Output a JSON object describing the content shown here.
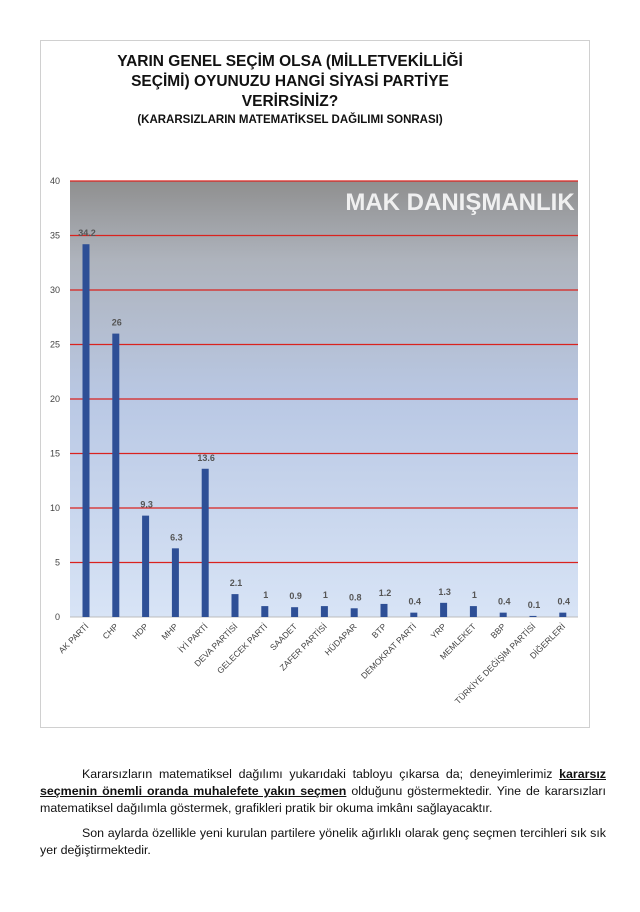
{
  "title_lines": [
    "YARIN GENEL SEÇİM OLSA (MİLLETVEKİLLİĞİ",
    "SEÇİMİ) OYUNUZU HANGİ SİYASİ PARTİYE",
    "VERİRSİNİZ?"
  ],
  "subtitle": "(KARARSIZLARIN MATEMATİKSEL DAĞILIMI SONRASI)",
  "watermark": "MAK DANIŞMANLIK",
  "colors": {
    "bar": "#2e4f96",
    "gridline": "#d9231f",
    "bg_top": "#8f8f8f",
    "bg_bottom": "#d6e3f6"
  },
  "chart_data": {
    "type": "bar",
    "title": "YARIN GENEL SEÇİM OLSA (MİLLETVEKİLLİĞİ SEÇİMİ) OYUNUZU HANGİ SİYASİ PARTİYE VERİRSİNİZ? (KARARSIZLARIN MATEMATİKSEL DAĞILIMI SONRASI)",
    "categories": [
      "AK PARTİ",
      "CHP",
      "HDP",
      "MHP",
      "İYİ PARTİ",
      "DEVA PARTİSİ",
      "GELECEK PARTİ",
      "SAADET",
      "ZAFER PARTİSİ",
      "HÜDAPAR",
      "BTP",
      "DEMOKRAT PARTİ",
      "YRP",
      "MEMLEKET",
      "BBP",
      "TÜRKİYE DEĞİŞİM PARTİSİ",
      "DİĞERLERİ"
    ],
    "values": [
      34.2,
      26,
      9.3,
      6.3,
      13.6,
      2.1,
      1,
      0.9,
      1,
      0.8,
      1.2,
      0.4,
      1.3,
      1,
      0.4,
      0.1,
      0.4
    ],
    "value_labels": [
      "34.2",
      "26",
      "9.3",
      "6.3",
      "13.6",
      "2.1",
      "1",
      "0.9",
      "1",
      "0.8",
      "1.2",
      "0.4",
      "1.3",
      "1",
      "0.4",
      "0.1",
      "0.4"
    ],
    "ylim": [
      0,
      40
    ],
    "yticks": [
      "0",
      "5",
      "10",
      "15",
      "20",
      "25",
      "30",
      "35",
      "40"
    ],
    "xlabel": "",
    "ylabel": "",
    "grid": true
  },
  "paragraph1": {
    "part1": "Kararsızların matematiksel dağılımı yukarıdaki tabloyu çıkarsa da; deneyimlerimiz ",
    "emphasis": "kararsız seçmenin önemli oranda muhalefete yakın seçmen",
    "part2": " olduğunu göstermektedir. Yine de kararsızları matematiksel dağılımla göstermek, grafikleri pratik bir okuma imkânı sağlayacaktır."
  },
  "paragraph2": "Son aylarda özellikle yeni kurulan partilere yönelik ağırlıklı olarak genç seçmen tercihleri sık sık yer değiştirmektedir."
}
